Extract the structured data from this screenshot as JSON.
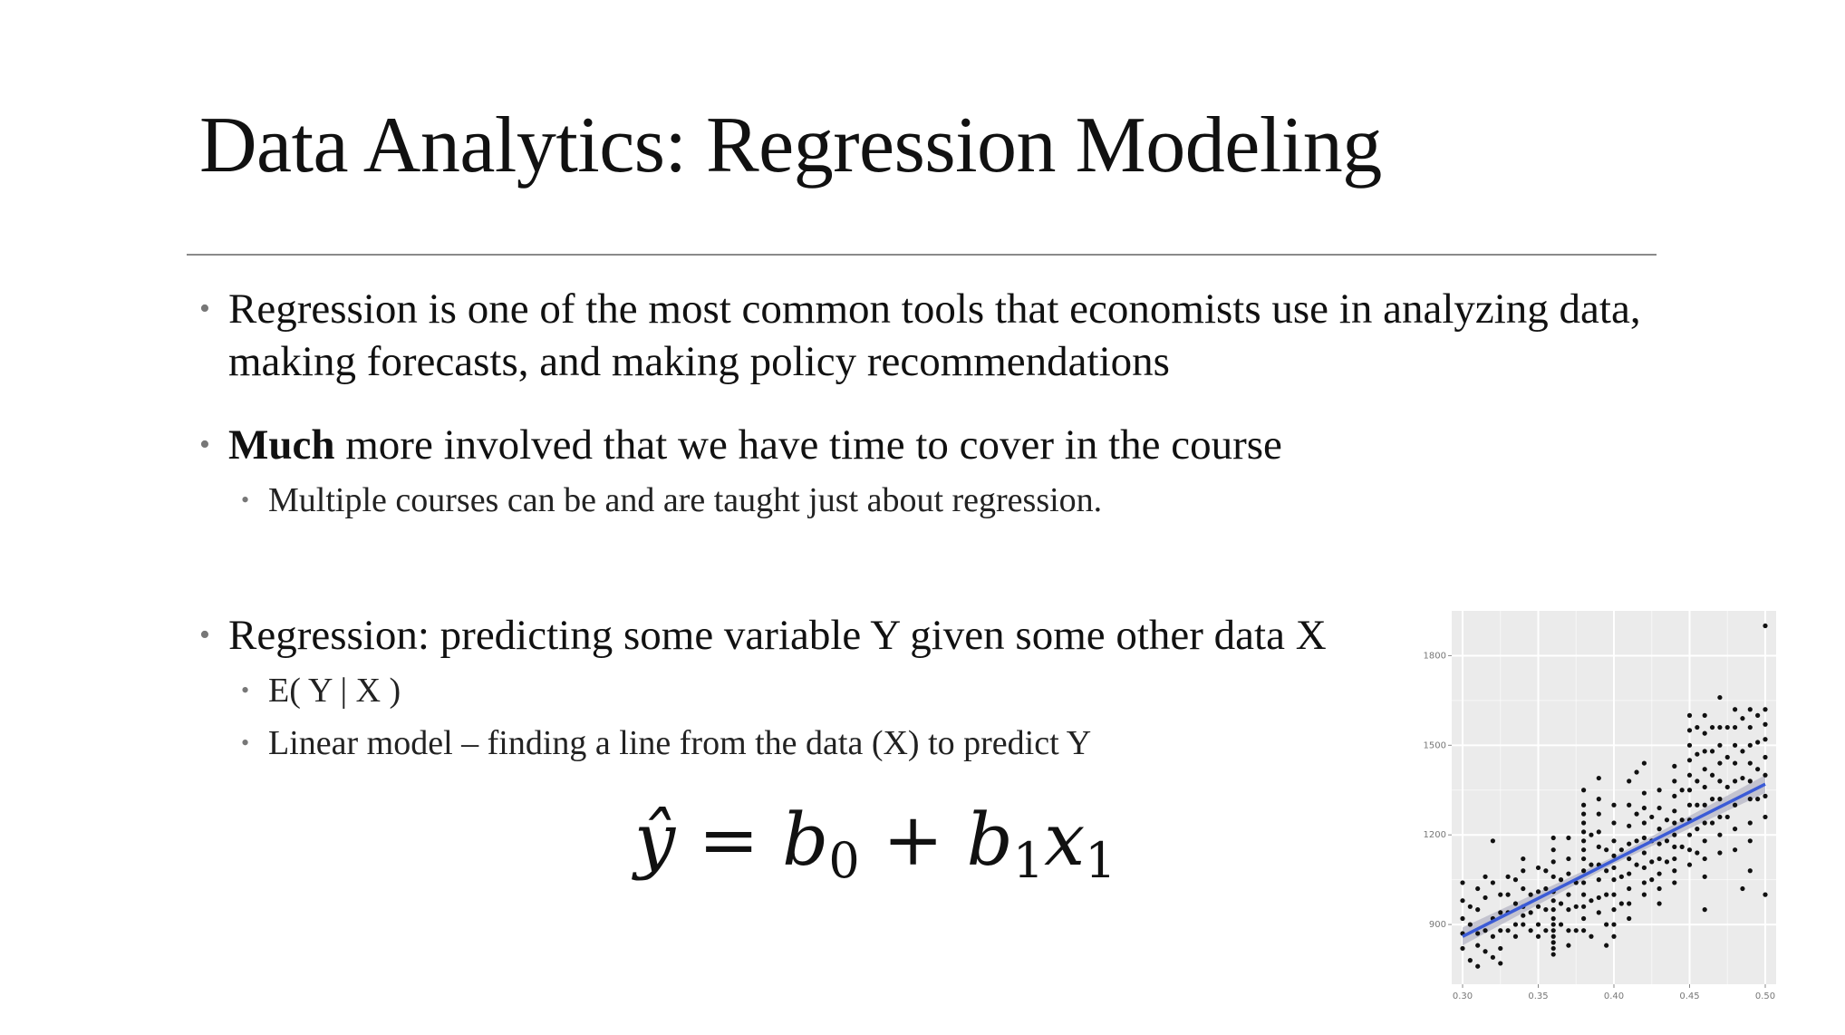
{
  "slide": {
    "title": "Data Analytics: Regression Modeling",
    "bullets": [
      {
        "text": "Regression is one of the most common tools that economists use in analyzing data, making forecasts, and making policy recommendations"
      },
      {
        "bold": "Much",
        "text": " more involved that we have time to cover in the course",
        "sub": [
          "Multiple courses can be and are taught just about regression."
        ]
      },
      {
        "text": "Regression: predicting some variable Y given some other data X",
        "sub": [
          "E( Y | X )",
          "Linear model – finding a line from the data (X) to predict Y"
        ]
      }
    ],
    "formula": {
      "lhs": "ŷ",
      "eq": " = ",
      "b0": "b",
      "b0_sub": "0",
      "plus": " + ",
      "b1": "b",
      "b1_sub": "1",
      "x1": "x",
      "x1_sub": "1"
    },
    "colors": {
      "panel_bg": "#ebebeb",
      "grid": "#ffffff",
      "points": "#111111",
      "fit_line": "#3b5bd6",
      "confidence_band": "#b9b9c8"
    }
  },
  "chart_data": {
    "type": "scatter",
    "title": "",
    "xlabel": "",
    "ylabel": "",
    "xlim": [
      0.3,
      0.5
    ],
    "ylim": [
      700,
      1950
    ],
    "x_ticks": [
      "0.30",
      "0.35",
      "0.40",
      "0.45",
      "0.50"
    ],
    "y_ticks": [
      "1800",
      "1500",
      "1200",
      "900"
    ],
    "y_tick_values": [
      1800,
      1500,
      1200,
      900
    ],
    "x_tick_values": [
      0.3,
      0.35,
      0.4,
      0.45,
      0.5
    ],
    "grid": true,
    "trendline": {
      "x": [
        0.3,
        0.5
      ],
      "y": [
        860,
        1370
      ]
    },
    "points": [
      [
        0.3,
        980
      ],
      [
        0.3,
        1040
      ],
      [
        0.3,
        870
      ],
      [
        0.3,
        820
      ],
      [
        0.3,
        920
      ],
      [
        0.305,
        900
      ],
      [
        0.305,
        960
      ],
      [
        0.305,
        780
      ],
      [
        0.31,
        870
      ],
      [
        0.31,
        950
      ],
      [
        0.31,
        1020
      ],
      [
        0.31,
        760
      ],
      [
        0.31,
        830
      ],
      [
        0.315,
        1060
      ],
      [
        0.315,
        990
      ],
      [
        0.315,
        880
      ],
      [
        0.315,
        810
      ],
      [
        0.32,
        1180
      ],
      [
        0.32,
        1040
      ],
      [
        0.32,
        920
      ],
      [
        0.32,
        860
      ],
      [
        0.32,
        790
      ],
      [
        0.325,
        1000
      ],
      [
        0.325,
        940
      ],
      [
        0.325,
        880
      ],
      [
        0.325,
        820
      ],
      [
        0.325,
        770
      ],
      [
        0.33,
        1060
      ],
      [
        0.33,
        1000
      ],
      [
        0.33,
        940
      ],
      [
        0.33,
        880
      ],
      [
        0.335,
        1050
      ],
      [
        0.335,
        970
      ],
      [
        0.335,
        900
      ],
      [
        0.335,
        860
      ],
      [
        0.34,
        1120
      ],
      [
        0.34,
        1080
      ],
      [
        0.34,
        1020
      ],
      [
        0.34,
        960
      ],
      [
        0.34,
        930
      ],
      [
        0.34,
        900
      ],
      [
        0.345,
        1000
      ],
      [
        0.345,
        940
      ],
      [
        0.345,
        880
      ],
      [
        0.35,
        1090
      ],
      [
        0.35,
        1010
      ],
      [
        0.35,
        960
      ],
      [
        0.35,
        900
      ],
      [
        0.35,
        860
      ],
      [
        0.355,
        1080
      ],
      [
        0.355,
        1020
      ],
      [
        0.355,
        950
      ],
      [
        0.355,
        880
      ],
      [
        0.36,
        1190
      ],
      [
        0.36,
        1150
      ],
      [
        0.36,
        1110
      ],
      [
        0.36,
        1060
      ],
      [
        0.36,
        1010
      ],
      [
        0.36,
        980
      ],
      [
        0.36,
        950
      ],
      [
        0.36,
        920
      ],
      [
        0.36,
        900
      ],
      [
        0.36,
        880
      ],
      [
        0.36,
        860
      ],
      [
        0.36,
        840
      ],
      [
        0.36,
        820
      ],
      [
        0.36,
        800
      ],
      [
        0.365,
        1050
      ],
      [
        0.365,
        970
      ],
      [
        0.365,
        900
      ],
      [
        0.37,
        1190
      ],
      [
        0.37,
        1120
      ],
      [
        0.37,
        1070
      ],
      [
        0.37,
        1000
      ],
      [
        0.37,
        950
      ],
      [
        0.37,
        880
      ],
      [
        0.37,
        830
      ],
      [
        0.375,
        1040
      ],
      [
        0.375,
        960
      ],
      [
        0.375,
        880
      ],
      [
        0.38,
        1350
      ],
      [
        0.38,
        1300
      ],
      [
        0.38,
        1270
      ],
      [
        0.38,
        1240
      ],
      [
        0.38,
        1210
      ],
      [
        0.38,
        1180
      ],
      [
        0.38,
        1150
      ],
      [
        0.38,
        1120
      ],
      [
        0.38,
        1080
      ],
      [
        0.38,
        1040
      ],
      [
        0.38,
        1000
      ],
      [
        0.38,
        960
      ],
      [
        0.38,
        920
      ],
      [
        0.38,
        880
      ],
      [
        0.385,
        1200
      ],
      [
        0.385,
        1100
      ],
      [
        0.385,
        980
      ],
      [
        0.385,
        860
      ],
      [
        0.39,
        1390
      ],
      [
        0.39,
        1320
      ],
      [
        0.39,
        1270
      ],
      [
        0.39,
        1210
      ],
      [
        0.39,
        1160
      ],
      [
        0.39,
        1100
      ],
      [
        0.39,
        1050
      ],
      [
        0.39,
        990
      ],
      [
        0.39,
        940
      ],
      [
        0.395,
        1150
      ],
      [
        0.395,
        1080
      ],
      [
        0.395,
        1000
      ],
      [
        0.395,
        900
      ],
      [
        0.395,
        830
      ],
      [
        0.4,
        1300
      ],
      [
        0.4,
        1240
      ],
      [
        0.4,
        1180
      ],
      [
        0.4,
        1130
      ],
      [
        0.4,
        1090
      ],
      [
        0.4,
        1050
      ],
      [
        0.4,
        1000
      ],
      [
        0.4,
        950
      ],
      [
        0.4,
        900
      ],
      [
        0.4,
        860
      ],
      [
        0.405,
        1150
      ],
      [
        0.405,
        1060
      ],
      [
        0.405,
        970
      ],
      [
        0.41,
        1380
      ],
      [
        0.41,
        1300
      ],
      [
        0.41,
        1230
      ],
      [
        0.41,
        1170
      ],
      [
        0.41,
        1120
      ],
      [
        0.41,
        1070
      ],
      [
        0.41,
        1020
      ],
      [
        0.41,
        970
      ],
      [
        0.41,
        920
      ],
      [
        0.415,
        1410
      ],
      [
        0.415,
        1270
      ],
      [
        0.415,
        1180
      ],
      [
        0.415,
        1100
      ],
      [
        0.42,
        1440
      ],
      [
        0.42,
        1340
      ],
      [
        0.42,
        1290
      ],
      [
        0.42,
        1240
      ],
      [
        0.42,
        1190
      ],
      [
        0.42,
        1140
      ],
      [
        0.42,
        1090
      ],
      [
        0.42,
        1040
      ],
      [
        0.42,
        1000
      ],
      [
        0.425,
        1260
      ],
      [
        0.425,
        1180
      ],
      [
        0.425,
        1110
      ],
      [
        0.425,
        1050
      ],
      [
        0.43,
        1350
      ],
      [
        0.43,
        1290
      ],
      [
        0.43,
        1220
      ],
      [
        0.43,
        1170
      ],
      [
        0.43,
        1120
      ],
      [
        0.43,
        1070
      ],
      [
        0.43,
        1020
      ],
      [
        0.43,
        970
      ],
      [
        0.435,
        1250
      ],
      [
        0.435,
        1180
      ],
      [
        0.435,
        1110
      ],
      [
        0.44,
        1430
      ],
      [
        0.44,
        1380
      ],
      [
        0.44,
        1330
      ],
      [
        0.44,
        1280
      ],
      [
        0.44,
        1240
      ],
      [
        0.44,
        1200
      ],
      [
        0.44,
        1160
      ],
      [
        0.44,
        1120
      ],
      [
        0.44,
        1080
      ],
      [
        0.44,
        1040
      ],
      [
        0.445,
        1350
      ],
      [
        0.445,
        1250
      ],
      [
        0.445,
        1160
      ],
      [
        0.45,
        1600
      ],
      [
        0.45,
        1550
      ],
      [
        0.45,
        1500
      ],
      [
        0.45,
        1450
      ],
      [
        0.45,
        1400
      ],
      [
        0.45,
        1350
      ],
      [
        0.45,
        1300
      ],
      [
        0.45,
        1250
      ],
      [
        0.45,
        1200
      ],
      [
        0.45,
        1150
      ],
      [
        0.45,
        1100
      ],
      [
        0.455,
        1560
      ],
      [
        0.455,
        1470
      ],
      [
        0.455,
        1380
      ],
      [
        0.455,
        1300
      ],
      [
        0.455,
        1220
      ],
      [
        0.455,
        1140
      ],
      [
        0.46,
        1600
      ],
      [
        0.46,
        1540
      ],
      [
        0.46,
        1480
      ],
      [
        0.46,
        1420
      ],
      [
        0.46,
        1360
      ],
      [
        0.46,
        1300
      ],
      [
        0.46,
        1240
      ],
      [
        0.46,
        1180
      ],
      [
        0.46,
        1120
      ],
      [
        0.46,
        1060
      ],
      [
        0.46,
        950
      ],
      [
        0.465,
        1560
      ],
      [
        0.465,
        1480
      ],
      [
        0.465,
        1400
      ],
      [
        0.465,
        1320
      ],
      [
        0.465,
        1240
      ],
      [
        0.47,
        1660
      ],
      [
        0.47,
        1560
      ],
      [
        0.47,
        1500
      ],
      [
        0.47,
        1440
      ],
      [
        0.47,
        1380
      ],
      [
        0.47,
        1320
      ],
      [
        0.47,
        1260
      ],
      [
        0.47,
        1200
      ],
      [
        0.47,
        1140
      ],
      [
        0.475,
        1560
      ],
      [
        0.475,
        1460
      ],
      [
        0.475,
        1360
      ],
      [
        0.475,
        1260
      ],
      [
        0.48,
        1620
      ],
      [
        0.48,
        1560
      ],
      [
        0.48,
        1500
      ],
      [
        0.48,
        1440
      ],
      [
        0.48,
        1380
      ],
      [
        0.48,
        1300
      ],
      [
        0.48,
        1220
      ],
      [
        0.48,
        1150
      ],
      [
        0.485,
        1590
      ],
      [
        0.485,
        1480
      ],
      [
        0.485,
        1390
      ],
      [
        0.485,
        1020
      ],
      [
        0.49,
        1620
      ],
      [
        0.49,
        1560
      ],
      [
        0.49,
        1500
      ],
      [
        0.49,
        1440
      ],
      [
        0.49,
        1380
      ],
      [
        0.49,
        1320
      ],
      [
        0.49,
        1240
      ],
      [
        0.49,
        1180
      ],
      [
        0.49,
        1080
      ],
      [
        0.495,
        1600
      ],
      [
        0.495,
        1510
      ],
      [
        0.495,
        1420
      ],
      [
        0.495,
        1320
      ],
      [
        0.5,
        1900
      ],
      [
        0.5,
        1620
      ],
      [
        0.5,
        1570
      ],
      [
        0.5,
        1520
      ],
      [
        0.5,
        1460
      ],
      [
        0.5,
        1400
      ],
      [
        0.5,
        1330
      ],
      [
        0.5,
        1260
      ],
      [
        0.5,
        1000
      ]
    ]
  }
}
